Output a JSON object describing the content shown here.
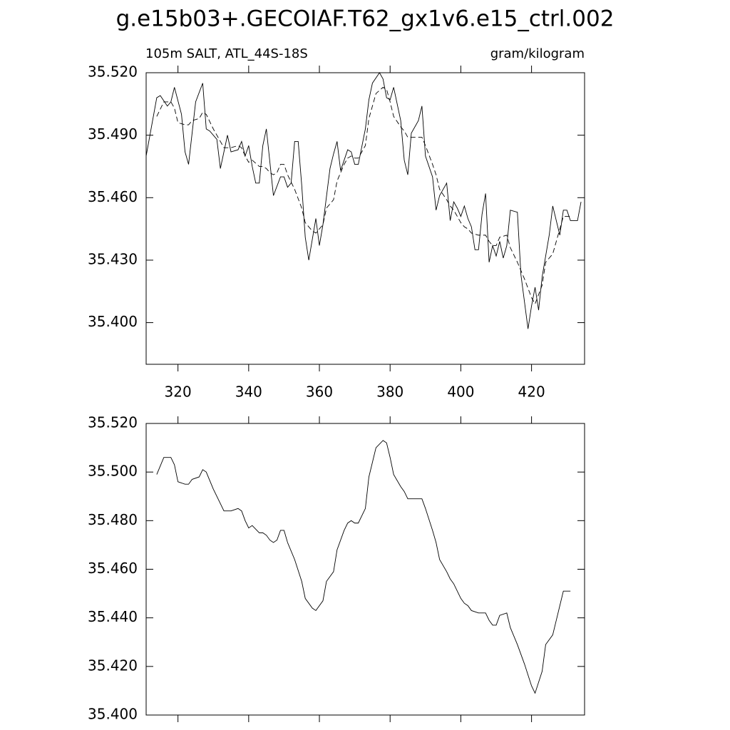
{
  "chart_data": [
    {
      "type": "line",
      "title": "g.e15b03+.GECOIAF.T62_gx1v6.e15_ctrl.002",
      "subtitle": "105m SALT, ATL_44S-18S",
      "units": "gram/kilogram",
      "xlim": [
        311,
        435
      ],
      "xticks": [
        320,
        340,
        360,
        380,
        400,
        420
      ],
      "ylim": [
        35.38,
        35.52
      ],
      "yticks": [
        {
          "value": 35.4,
          "label": "35.400"
        },
        {
          "value": 35.43,
          "label": "35.430"
        },
        {
          "value": 35.46,
          "label": "35.460"
        },
        {
          "value": 35.49,
          "label": "35.490"
        },
        {
          "value": 35.52,
          "label": "35.520"
        }
      ],
      "series": [
        {
          "color": "#000000",
          "line_style": "solid",
          "x": [
            311,
            314,
            315,
            317,
            318,
            319,
            321,
            322,
            323,
            325,
            327,
            328,
            329,
            331,
            332,
            334,
            335,
            337,
            338,
            339,
            340,
            341,
            342,
            343,
            344,
            345,
            347,
            349,
            350,
            351,
            352,
            353,
            354,
            355,
            356,
            357,
            358,
            359,
            360,
            361,
            363,
            364,
            365,
            366,
            368,
            369,
            370,
            371,
            373,
            374,
            375,
            377,
            378,
            379,
            380,
            381,
            383,
            384,
            385,
            386,
            388,
            389,
            390,
            392,
            393,
            394,
            396,
            397,
            398,
            399,
            400,
            401,
            402,
            403,
            404,
            405,
            406,
            407,
            408,
            409,
            410,
            411,
            412,
            413,
            414,
            416,
            417,
            419,
            420,
            421,
            422,
            423,
            425,
            426,
            428,
            429,
            430,
            431,
            433,
            434
          ],
          "values": [
            35.48,
            35.508,
            35.509,
            35.504,
            35.506,
            35.513,
            35.5,
            35.482,
            35.476,
            35.506,
            35.515,
            35.493,
            35.492,
            35.488,
            35.474,
            35.49,
            35.482,
            35.483,
            35.487,
            35.48,
            35.485,
            35.475,
            35.467,
            35.467,
            35.485,
            35.493,
            35.461,
            35.47,
            35.47,
            35.465,
            35.467,
            35.487,
            35.487,
            35.466,
            35.441,
            35.43,
            35.44,
            35.45,
            35.437,
            35.447,
            35.474,
            35.481,
            35.487,
            35.473,
            35.483,
            35.482,
            35.476,
            35.476,
            35.493,
            35.507,
            35.515,
            35.52,
            35.517,
            35.508,
            35.507,
            35.513,
            35.497,
            35.478,
            35.471,
            35.491,
            35.497,
            35.504,
            35.48,
            35.47,
            35.454,
            35.461,
            35.467,
            35.449,
            35.458,
            35.455,
            35.451,
            35.456,
            35.45,
            35.446,
            35.435,
            35.435,
            35.452,
            35.462,
            35.429,
            35.437,
            35.432,
            35.439,
            35.431,
            35.437,
            35.454,
            35.453,
            35.423,
            35.397,
            35.408,
            35.417,
            35.406,
            35.422,
            35.442,
            35.456,
            35.442,
            35.454,
            35.454,
            35.449,
            35.449,
            35.458
          ]
        },
        {
          "color": "#000000",
          "line_style": "dashed",
          "x": [
            314,
            316,
            318,
            319,
            320,
            322,
            323,
            324,
            326,
            327,
            328,
            330,
            332,
            333,
            335,
            337,
            338,
            339,
            340,
            341,
            343,
            344,
            345,
            346,
            347,
            348,
            349,
            350,
            351,
            353,
            355,
            356,
            358,
            359,
            361,
            362,
            364,
            365,
            367,
            368,
            369,
            370,
            371,
            373,
            374,
            376,
            378,
            379,
            380,
            381,
            383,
            384,
            385,
            387,
            388,
            389,
            390,
            392,
            393,
            394,
            396,
            397,
            398,
            400,
            401,
            402,
            403,
            405,
            406,
            407,
            408,
            409,
            410,
            411,
            413,
            414,
            416,
            418,
            420,
            421,
            423,
            424,
            426,
            427,
            428,
            429,
            431
          ],
          "values": [
            35.499,
            35.506,
            35.506,
            35.503,
            35.496,
            35.495,
            35.495,
            35.497,
            35.498,
            35.501,
            35.5,
            35.493,
            35.487,
            35.484,
            35.484,
            35.485,
            35.484,
            35.48,
            35.477,
            35.478,
            35.475,
            35.475,
            35.474,
            35.472,
            35.471,
            35.472,
            35.476,
            35.476,
            35.471,
            35.464,
            35.455,
            35.448,
            35.444,
            35.443,
            35.447,
            35.455,
            35.459,
            35.468,
            35.476,
            35.479,
            35.48,
            35.479,
            35.479,
            35.485,
            35.498,
            35.51,
            35.513,
            35.512,
            35.506,
            35.499,
            35.494,
            35.492,
            35.489,
            35.489,
            35.489,
            35.489,
            35.485,
            35.476,
            35.471,
            35.464,
            35.459,
            35.456,
            35.454,
            35.448,
            35.446,
            35.445,
            35.443,
            35.442,
            35.442,
            35.442,
            35.439,
            35.437,
            35.437,
            35.441,
            35.442,
            35.436,
            35.429,
            35.421,
            35.412,
            35.409,
            35.418,
            35.429,
            35.433,
            35.439,
            35.445,
            35.451,
            35.451
          ]
        }
      ]
    },
    {
      "type": "line",
      "xlim": [
        311,
        435
      ],
      "xticks": [
        320,
        340,
        360,
        380,
        400,
        420
      ],
      "ylim": [
        35.4,
        35.52
      ],
      "yticks": [
        {
          "value": 35.4,
          "label": "35.400"
        },
        {
          "value": 35.42,
          "label": "35.420"
        },
        {
          "value": 35.44,
          "label": "35.440"
        },
        {
          "value": 35.46,
          "label": "35.460"
        },
        {
          "value": 35.48,
          "label": "35.480"
        },
        {
          "value": 35.5,
          "label": "35.500"
        },
        {
          "value": 35.52,
          "label": "35.520"
        }
      ],
      "series": [
        {
          "color": "#000000",
          "line_style": "solid",
          "x": [
            314,
            316,
            318,
            319,
            320,
            322,
            323,
            324,
            326,
            327,
            328,
            330,
            332,
            333,
            335,
            337,
            338,
            339,
            340,
            341,
            343,
            344,
            345,
            346,
            347,
            348,
            349,
            350,
            351,
            353,
            355,
            356,
            358,
            359,
            361,
            362,
            364,
            365,
            367,
            368,
            369,
            370,
            371,
            373,
            374,
            376,
            378,
            379,
            380,
            381,
            383,
            384,
            385,
            387,
            388,
            389,
            390,
            392,
            393,
            394,
            396,
            397,
            398,
            400,
            401,
            402,
            403,
            405,
            406,
            407,
            408,
            409,
            410,
            411,
            413,
            414,
            416,
            418,
            420,
            421,
            423,
            424,
            426,
            427,
            428,
            429,
            431
          ],
          "values": [
            35.499,
            35.506,
            35.506,
            35.503,
            35.496,
            35.495,
            35.495,
            35.497,
            35.498,
            35.501,
            35.5,
            35.493,
            35.487,
            35.484,
            35.484,
            35.485,
            35.484,
            35.48,
            35.477,
            35.478,
            35.475,
            35.475,
            35.474,
            35.472,
            35.471,
            35.472,
            35.476,
            35.476,
            35.471,
            35.464,
            35.455,
            35.448,
            35.444,
            35.443,
            35.447,
            35.455,
            35.459,
            35.468,
            35.476,
            35.479,
            35.48,
            35.479,
            35.479,
            35.485,
            35.498,
            35.51,
            35.513,
            35.512,
            35.506,
            35.499,
            35.494,
            35.492,
            35.489,
            35.489,
            35.489,
            35.489,
            35.485,
            35.476,
            35.471,
            35.464,
            35.459,
            35.456,
            35.454,
            35.448,
            35.446,
            35.445,
            35.443,
            35.442,
            35.442,
            35.442,
            35.439,
            35.437,
            35.437,
            35.441,
            35.442,
            35.436,
            35.429,
            35.421,
            35.412,
            35.409,
            35.418,
            35.429,
            35.433,
            35.439,
            35.445,
            35.451,
            35.451
          ]
        }
      ]
    }
  ]
}
